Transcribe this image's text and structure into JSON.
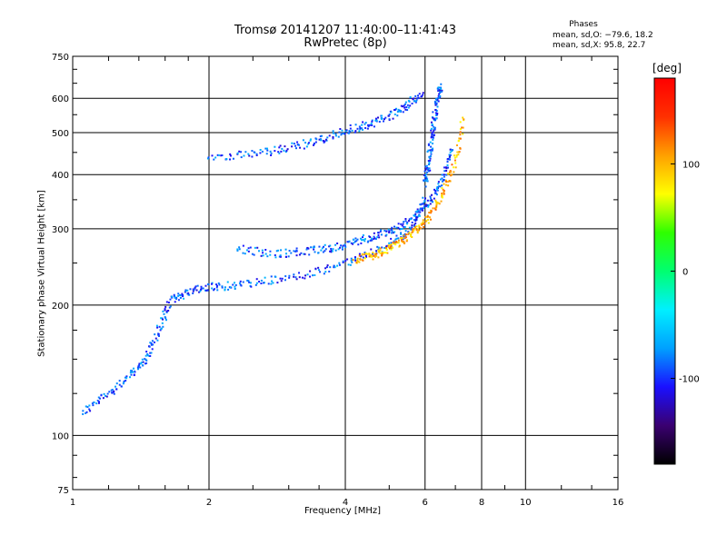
{
  "chart_data": {
    "type": "scatter",
    "title": "Tromsø 20141207 11:40:00–11:41:43",
    "subtitle": "RwPretec (8p)",
    "xlabel": "Frequency [MHz]",
    "ylabel": "Stationary phase Virtual Height [km]",
    "x_scale": "log",
    "y_scale": "log",
    "xlim": [
      1,
      16
    ],
    "ylim": [
      75,
      750
    ],
    "x_ticks": [
      "1",
      "2",
      "4",
      "6",
      "8",
      "10",
      "16"
    ],
    "x_tick_values": [
      1,
      2,
      4,
      6,
      8,
      10,
      16
    ],
    "y_ticks": [
      "75",
      "100",
      "200",
      "300",
      "400",
      "500",
      "600",
      "750"
    ],
    "y_tick_values": [
      75,
      100,
      200,
      300,
      400,
      500,
      600,
      750
    ],
    "grid": true,
    "colorbar": {
      "unit": "[deg]",
      "ticks": [
        "100",
        "0",
        "-100"
      ],
      "tick_values": [
        100,
        0,
        -100
      ],
      "range": [
        -180,
        180
      ],
      "colors": [
        "#000000",
        "#3a0070",
        "#1a10ff",
        "#00a0ff",
        "#00f0ff",
        "#00ff70",
        "#2fff00",
        "#ffff00",
        "#ffa000",
        "#ff3000",
        "#ff0000"
      ]
    },
    "stats": {
      "title": "Phases",
      "o_mode": "mean, sd,O: −79.6, 18.2",
      "x_mode": "mean, sd,X:  95.8, 22.7"
    },
    "series": [
      {
        "description_color_deg": -90,
        "traces": [
          {
            "x": [
              1.05,
              1.2,
              1.35,
              1.45,
              1.55,
              1.65,
              1.8,
              2.0,
              2.3,
              2.8,
              3.5,
              4.2,
              5.0,
              5.6,
              6.0
            ],
            "y": [
              113,
              125,
              138,
              150,
              175,
              205,
              215,
              220,
              222,
              228,
              238,
              255,
              275,
              300,
              355
            ]
          },
          {
            "x": [
              2.0,
              2.5,
              3.0,
              3.5,
              4.0,
              4.5,
              5.0,
              5.5,
              5.9
            ],
            "y": [
              440,
              445,
              460,
              480,
              505,
              520,
              545,
              580,
              615
            ]
          },
          {
            "x": [
              6.0,
              6.1,
              6.2,
              6.3,
              6.4,
              6.5
            ],
            "y": [
              380,
              420,
              480,
              540,
              600,
              640
            ]
          },
          {
            "x": [
              2.3,
              2.8,
              3.3,
              3.8,
              4.3,
              4.8,
              5.3,
              5.8,
              6.2,
              6.6,
              6.9
            ],
            "y": [
              270,
              262,
              266,
              272,
              282,
              292,
              305,
              325,
              355,
              395,
              460
            ]
          }
        ]
      },
      {
        "description_color_deg": 100,
        "traces": [
          {
            "x": [
              4.2,
              4.6,
              5.0,
              5.4,
              5.8,
              6.2,
              6.6,
              7.0,
              7.3
            ],
            "y": [
              255,
              260,
              270,
              283,
              300,
              325,
              365,
              430,
              540
            ]
          }
        ]
      }
    ]
  }
}
